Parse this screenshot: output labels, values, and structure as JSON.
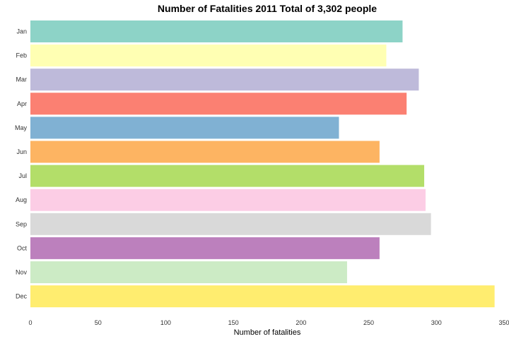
{
  "chart_data": {
    "type": "bar",
    "orientation": "horizontal",
    "title": "Number of Fatalities 2011 Total of 3,302 people",
    "xlabel": "Number of fatalities",
    "ylabel": "",
    "categories": [
      "Jan",
      "Feb",
      "Mar",
      "Apr",
      "May",
      "Jun",
      "Jul",
      "Aug",
      "Sep",
      "Oct",
      "Nov",
      "Dec"
    ],
    "values": [
      275,
      263,
      287,
      278,
      228,
      258,
      291,
      292,
      296,
      258,
      234,
      343
    ],
    "xlim": [
      0,
      350
    ],
    "xticks": [
      "0",
      "50",
      "100",
      "150",
      "200",
      "250",
      "300",
      "350"
    ],
    "grid": false,
    "colors": [
      "#8DD3C7",
      "#FFFFB3",
      "#BEBADA",
      "#FB8072",
      "#80B1D3",
      "#FDB462",
      "#B3DE69",
      "#FCCDE5",
      "#D9D9D9",
      "#BC80BD",
      "#CCEBC5",
      "#FFED6F"
    ]
  }
}
